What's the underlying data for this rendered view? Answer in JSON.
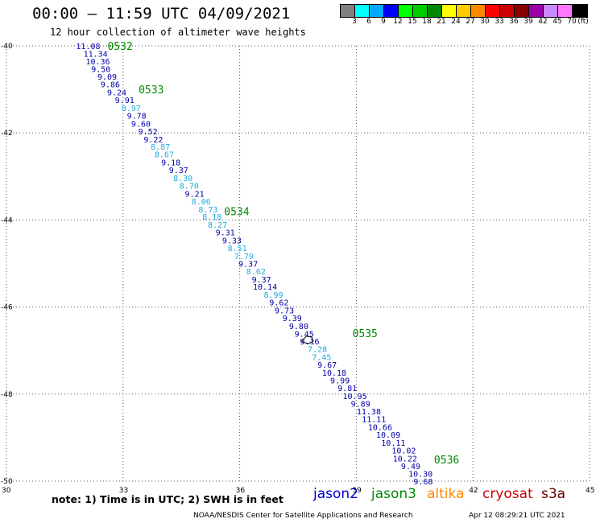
{
  "title": "00:00 – 11:59 UTC 04/09/2021",
  "subtitle": "12 hour collection of altimeter wave heights",
  "legend": {
    "colors": [
      "#808080",
      "#00ffff",
      "#00aaff",
      "#0000ff",
      "#00ff00",
      "#00cc00",
      "#008800",
      "#ffff00",
      "#ffcc00",
      "#ff8800",
      "#ff0000",
      "#cc0000",
      "#880000",
      "#9900aa",
      "#cc88ff",
      "#ff77ff",
      "#000000"
    ],
    "labels": [
      "3",
      "6",
      "9",
      "12",
      "15",
      "18",
      "21",
      "24",
      "27",
      "30",
      "33",
      "36",
      "39",
      "42",
      "45",
      "70",
      "(ft)"
    ]
  },
  "note": "note:  1) Time is in UTC;  2) SWH is in feet",
  "satellites": [
    {
      "name": "jason2",
      "color": "#0000cc"
    },
    {
      "name": "jason3",
      "color": "#008800"
    },
    {
      "name": "altika",
      "color": "#ff8800"
    },
    {
      "name": "cryosat",
      "color": "#cc0000"
    },
    {
      "name": "s3a",
      "color": "#660000"
    }
  ],
  "credit": "NOAA/NESDIS Center for Satellite Applications and Research",
  "timestamp": "Apr 12 08:29:21 UTC 2021",
  "map": {
    "lon_range": [
      30,
      45
    ],
    "lat_range": [
      -50,
      -40
    ],
    "lon_ticks": [
      "30",
      "33",
      "36",
      "39",
      "42",
      "45"
    ],
    "lat_ticks": [
      "-40",
      "-42",
      "-44",
      "-46",
      "-48",
      "-50"
    ],
    "time_labels": [
      {
        "text": "0532",
        "lon": 32.6,
        "lat": -40.0
      },
      {
        "text": "0533",
        "lon": 33.4,
        "lat": -41.0
      },
      {
        "text": "0534",
        "lon": 35.6,
        "lat": -43.8
      },
      {
        "text": "0535",
        "lon": 38.9,
        "lat": -46.6
      },
      {
        "text": "0536",
        "lon": 41.0,
        "lat": -49.5
      }
    ],
    "track_color_dark": "#0000aa",
    "track_color_light": "#22aadd",
    "measurements": [
      {
        "v": "11.08",
        "lon": 31.79,
        "lat": -40.0,
        "c": "dark"
      },
      {
        "v": "11.34",
        "lon": 31.98,
        "lat": -40.18,
        "c": "dark"
      },
      {
        "v": "10.36",
        "lon": 32.04,
        "lat": -40.35,
        "c": "dark"
      },
      {
        "v": "9.50",
        "lon": 32.18,
        "lat": -40.53,
        "c": "dark"
      },
      {
        "v": "9.09",
        "lon": 32.34,
        "lat": -40.7,
        "c": "dark"
      },
      {
        "v": "9.86",
        "lon": 32.42,
        "lat": -40.88,
        "c": "dark"
      },
      {
        "v": "9.24",
        "lon": 32.59,
        "lat": -41.06,
        "c": "dark"
      },
      {
        "v": "9.91",
        "lon": 32.79,
        "lat": -41.24,
        "c": "dark"
      },
      {
        "v": "8.97",
        "lon": 32.96,
        "lat": -41.42,
        "c": "light"
      },
      {
        "v": "9.78",
        "lon": 33.1,
        "lat": -41.6,
        "c": "dark"
      },
      {
        "v": "9.60",
        "lon": 33.21,
        "lat": -41.78,
        "c": "dark"
      },
      {
        "v": "9.52",
        "lon": 33.39,
        "lat": -41.96,
        "c": "dark"
      },
      {
        "v": "9.22",
        "lon": 33.53,
        "lat": -42.14,
        "c": "dark"
      },
      {
        "v": "8.87",
        "lon": 33.71,
        "lat": -42.31,
        "c": "light"
      },
      {
        "v": "8.67",
        "lon": 33.81,
        "lat": -42.49,
        "c": "light"
      },
      {
        "v": "9.18",
        "lon": 33.98,
        "lat": -42.67,
        "c": "dark"
      },
      {
        "v": "9.37",
        "lon": 34.18,
        "lat": -42.85,
        "c": "dark"
      },
      {
        "v": "8.30",
        "lon": 34.29,
        "lat": -43.03,
        "c": "light"
      },
      {
        "v": "8.70",
        "lon": 34.45,
        "lat": -43.21,
        "c": "light"
      },
      {
        "v": "9.21",
        "lon": 34.59,
        "lat": -43.39,
        "c": "dark"
      },
      {
        "v": "8.06",
        "lon": 34.76,
        "lat": -43.57,
        "c": "light"
      },
      {
        "v": "8.73",
        "lon": 34.94,
        "lat": -43.75,
        "c": "light"
      },
      {
        "v": "8.18",
        "lon": 35.04,
        "lat": -43.92,
        "c": "light"
      },
      {
        "v": "8.27",
        "lon": 35.18,
        "lat": -44.1,
        "c": "light"
      },
      {
        "v": "9.31",
        "lon": 35.38,
        "lat": -44.28,
        "c": "dark"
      },
      {
        "v": "9.33",
        "lon": 35.55,
        "lat": -44.46,
        "c": "dark"
      },
      {
        "v": "8.51",
        "lon": 35.69,
        "lat": -44.64,
        "c": "light"
      },
      {
        "v": "7.79",
        "lon": 35.86,
        "lat": -44.82,
        "c": "light"
      },
      {
        "v": "9.37",
        "lon": 35.97,
        "lat": -45.0,
        "c": "dark"
      },
      {
        "v": "8.62",
        "lon": 36.17,
        "lat": -45.18,
        "c": "light"
      },
      {
        "v": "9.37",
        "lon": 36.31,
        "lat": -45.36,
        "c": "dark"
      },
      {
        "v": "10.14",
        "lon": 36.34,
        "lat": -45.53,
        "c": "dark"
      },
      {
        "v": "8.99",
        "lon": 36.62,
        "lat": -45.71,
        "c": "light"
      },
      {
        "v": "9.62",
        "lon": 36.76,
        "lat": -45.89,
        "c": "dark"
      },
      {
        "v": "9.73",
        "lon": 36.9,
        "lat": -46.07,
        "c": "dark"
      },
      {
        "v": "9.39",
        "lon": 37.1,
        "lat": -46.25,
        "c": "dark"
      },
      {
        "v": "9.80",
        "lon": 37.27,
        "lat": -46.43,
        "c": "dark"
      },
      {
        "v": "9.45",
        "lon": 37.41,
        "lat": -46.61,
        "c": "dark"
      },
      {
        "v": "9.16",
        "lon": 37.55,
        "lat": -46.78,
        "c": "dark"
      },
      {
        "v": "7.28",
        "lon": 37.75,
        "lat": -46.96,
        "c": "light"
      },
      {
        "v": "7.45",
        "lon": 37.86,
        "lat": -47.14,
        "c": "light"
      },
      {
        "v": "9.67",
        "lon": 38.0,
        "lat": -47.32,
        "c": "dark"
      },
      {
        "v": "10.18",
        "lon": 38.12,
        "lat": -47.5,
        "c": "dark"
      },
      {
        "v": "9.99",
        "lon": 38.33,
        "lat": -47.68,
        "c": "dark"
      },
      {
        "v": "9.81",
        "lon": 38.52,
        "lat": -47.86,
        "c": "dark"
      },
      {
        "v": "10.95",
        "lon": 38.65,
        "lat": -48.04,
        "c": "dark"
      },
      {
        "v": "9.89",
        "lon": 38.86,
        "lat": -48.22,
        "c": "dark"
      },
      {
        "v": "11.38",
        "lon": 39.01,
        "lat": -48.39,
        "c": "dark"
      },
      {
        "v": "11.11",
        "lon": 39.14,
        "lat": -48.57,
        "c": "dark"
      },
      {
        "v": "10.66",
        "lon": 39.3,
        "lat": -48.75,
        "c": "dark"
      },
      {
        "v": "10.09",
        "lon": 39.51,
        "lat": -48.93,
        "c": "dark"
      },
      {
        "v": "10.11",
        "lon": 39.64,
        "lat": -49.11,
        "c": "dark"
      },
      {
        "v": "10.02",
        "lon": 39.91,
        "lat": -49.29,
        "c": "dark"
      },
      {
        "v": "10.22",
        "lon": 39.94,
        "lat": -49.47,
        "c": "dark"
      },
      {
        "v": "9.49",
        "lon": 40.15,
        "lat": -49.65,
        "c": "dark"
      },
      {
        "v": "10.30",
        "lon": 40.34,
        "lat": -49.82,
        "c": "dark"
      },
      {
        "v": "9.68",
        "lon": 40.47,
        "lat": -50.0,
        "c": "dark"
      }
    ]
  }
}
